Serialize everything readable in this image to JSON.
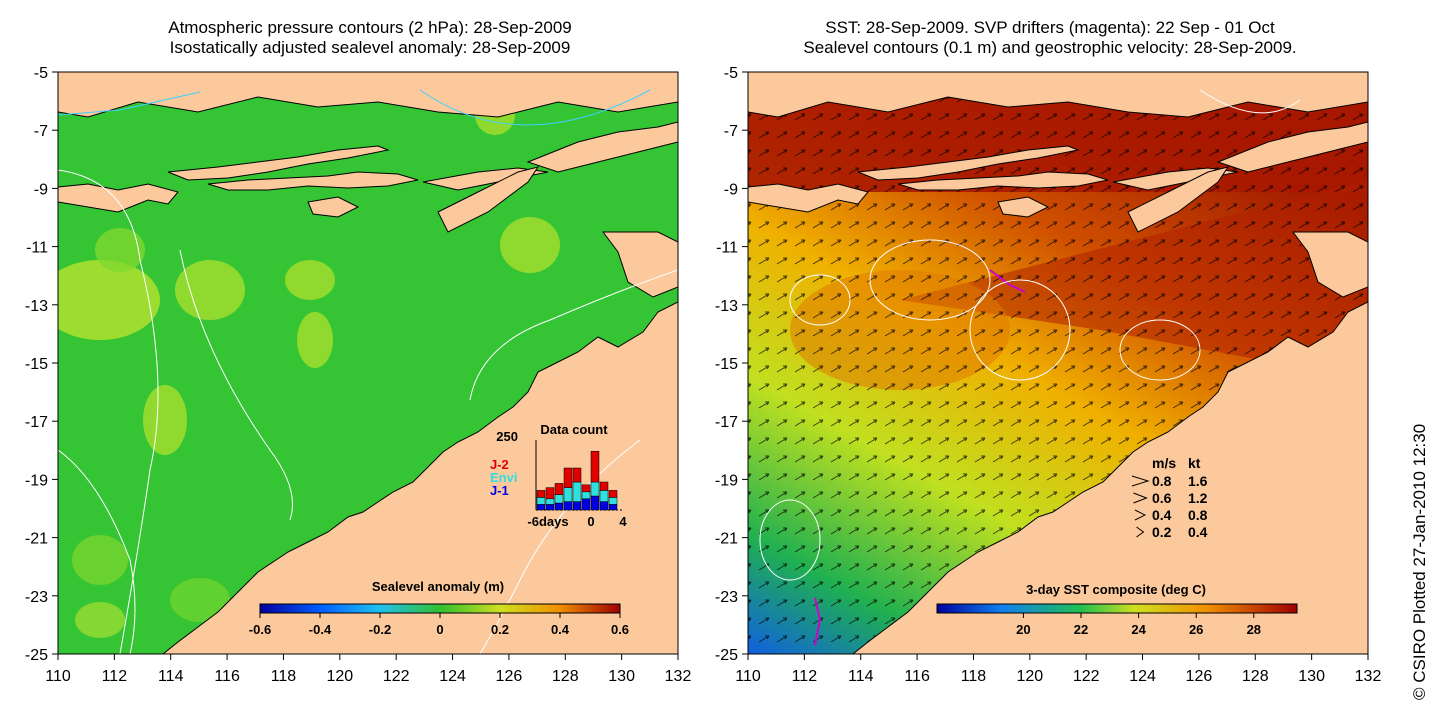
{
  "left_panel": {
    "title_line1": "Atmospheric pressure contours (2 hPa): 28-Sep-2009",
    "title_line2": "Isostatically adjusted sealevel anomaly: 28-Sep-2009",
    "colorbar_label": "Sealevel anomaly (m)",
    "colorbar_ticks": [
      "-0.6",
      "-0.4",
      "-0.2",
      "0",
      "0.2",
      "0.4",
      "0.6"
    ],
    "inset": {
      "title": "Data count",
      "y_max_label": "250",
      "x_labels": [
        "-6days",
        "0",
        "4"
      ],
      "legend": [
        {
          "label": "J-2",
          "color": "#e00000"
        },
        {
          "label": "Envi",
          "color": "#30e0e0"
        },
        {
          "label": "J-1",
          "color": "#0000e0"
        }
      ],
      "bars": [
        {
          "j1": 20,
          "envi": 25,
          "j2": 25
        },
        {
          "j1": 20,
          "envi": 20,
          "j2": 40
        },
        {
          "j1": 25,
          "envi": 30,
          "j2": 40
        },
        {
          "j1": 30,
          "envi": 50,
          "j2": 70
        },
        {
          "j1": 30,
          "envi": 70,
          "j2": 50
        },
        {
          "j1": 40,
          "envi": 25,
          "j2": 25
        },
        {
          "j1": 50,
          "envi": 50,
          "j2": 110
        },
        {
          "j1": 30,
          "envi": 40,
          "j2": 30
        },
        {
          "j1": 20,
          "envi": 25,
          "j2": 25
        }
      ]
    }
  },
  "right_panel": {
    "title_line1": "SST: 28-Sep-2009. SVP drifters (magenta): 22 Sep - 01 Oct",
    "title_line2": "Sealevel contours (0.1 m) and geostrophic velocity: 28-Sep-2009.",
    "colorbar_label": "3-day SST composite (deg C)",
    "colorbar_ticks": [
      "20",
      "22",
      "24",
      "26",
      "28"
    ],
    "velocity_legend": {
      "header_ms": "m/s",
      "header_kt": "kt",
      "rows": [
        {
          "ms": "0.8",
          "kt": "1.6"
        },
        {
          "ms": "0.6",
          "kt": "1.2"
        },
        {
          "ms": "0.4",
          "kt": "0.8"
        },
        {
          "ms": "0.2",
          "kt": "0.4"
        }
      ]
    }
  },
  "axes": {
    "lat_labels": [
      "-5",
      "-7",
      "-9",
      "-11",
      "-13",
      "-15",
      "-17",
      "-19",
      "-21",
      "-23",
      "-25"
    ],
    "lon_labels": [
      "110",
      "112",
      "114",
      "116",
      "118",
      "120",
      "122",
      "124",
      "126",
      "128",
      "130",
      "132"
    ]
  },
  "credit": "© CSIRO Plotted 27-Jan-2010 12:30",
  "colors": {
    "land": "#fbc99c",
    "sea_green": "#33cc33",
    "sst_warm": "#b02000",
    "sst_cool": "#f0d000",
    "drifter": "#d000d0"
  }
}
